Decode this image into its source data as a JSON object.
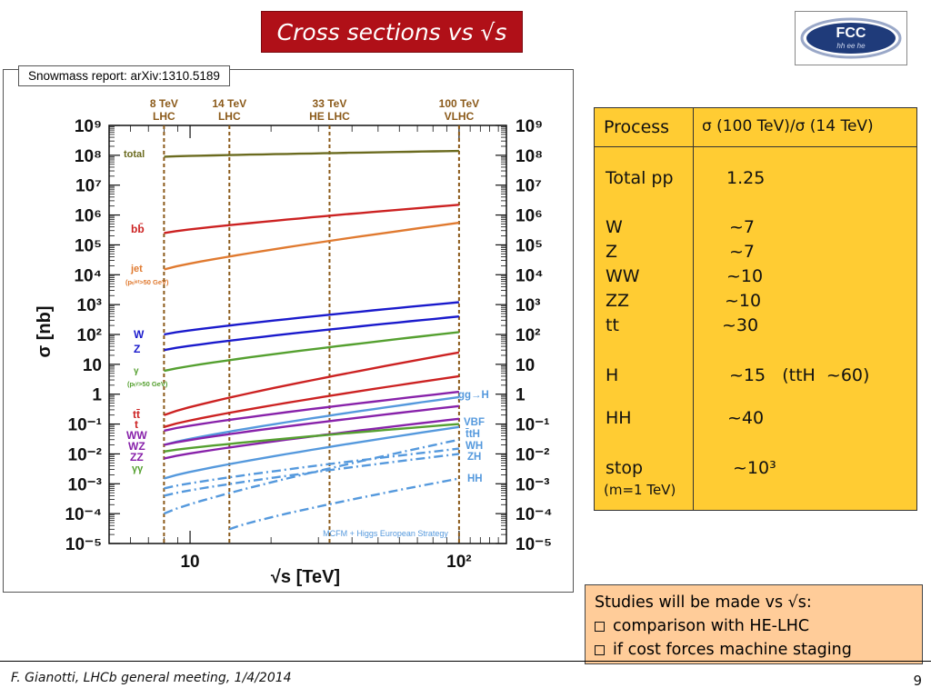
{
  "slide": {
    "title": "Cross sections vs √s",
    "logo_text_top": "FCC",
    "logo_text_bottom": "hh ee he",
    "source_label": "Snowmass report: arXiv:1310.5189",
    "footer": "F. Gianotti, LHCb general meeting, 1/4/2014",
    "page_number": "9"
  },
  "table": {
    "header_col1": "Process",
    "header_col2": "σ (100 TeV)/σ (14 TeV)",
    "rows": [
      {
        "process": "Total pp",
        "ratio": "1.25"
      },
      {
        "process": "W",
        "ratio": "~7"
      },
      {
        "process": "Z",
        "ratio": "~7"
      },
      {
        "process": "WW",
        "ratio": "~10"
      },
      {
        "process": "ZZ",
        "ratio": "~10"
      },
      {
        "process": "tt",
        "ratio": "~30"
      },
      {
        "process": "H",
        "ratio": "~15   (ttH  ~60)"
      },
      {
        "process": "HH",
        "ratio": "~40"
      },
      {
        "process": "stop",
        "ratio": "~10³"
      },
      {
        "process": "(m=1 TeV)",
        "ratio": ""
      }
    ]
  },
  "studies": {
    "heading": "Studies will be made vs √s:",
    "items": [
      "comparison with HE-LHC",
      "if cost forces machine staging"
    ]
  },
  "chart_data": {
    "type": "line",
    "xlabel": "√s [TeV]",
    "ylabel": "σ [nb]",
    "xscale": "log",
    "yscale": "log",
    "xlim": [
      5,
      150
    ],
    "ylim": [
      1e-05,
      1000000000.0
    ],
    "x_tick_labels": [
      "10",
      "10²"
    ],
    "y_tick_labels": [
      "10⁹",
      "10⁸",
      "10⁷",
      "10⁶",
      "10⁵",
      "10⁴",
      "10³",
      "10²",
      "10",
      "1",
      "10⁻¹",
      "10⁻²",
      "10⁻³",
      "10⁻⁴",
      "10⁻⁵"
    ],
    "vertical_markers": [
      {
        "x": 8,
        "label_top": "8 TeV",
        "label_bottom": "LHC"
      },
      {
        "x": 14,
        "label_top": "14 TeV",
        "label_bottom": "LHC"
      },
      {
        "x": 33,
        "label_top": "33 TeV",
        "label_bottom": "HE LHC"
      },
      {
        "x": 100,
        "label_top": "100 TeV",
        "label_bottom": "VLHC"
      }
    ],
    "annotation": "MCFM + Higgs European Strategy",
    "series": [
      {
        "name": "total",
        "color": "#6b6b1f",
        "dash": false,
        "x": [
          8,
          100
        ],
        "y": [
          90000000.0,
          140000000.0
        ]
      },
      {
        "name": "bb̄",
        "color": "#cc2222",
        "dash": false,
        "x": [
          8,
          100
        ],
        "y": [
          250000.0,
          2200000.0
        ]
      },
      {
        "name": "jet",
        "color": "#e07a30",
        "dash": false,
        "x": [
          8,
          100
        ],
        "y": [
          15000.0,
          550000.0
        ]
      },
      {
        "name": "W",
        "color": "#1a1acc",
        "dash": false,
        "x": [
          8,
          100
        ],
        "y": [
          100,
          1200
        ]
      },
      {
        "name": "Z",
        "color": "#1a1acc",
        "dash": false,
        "x": [
          8,
          100
        ],
        "y": [
          30,
          400
        ]
      },
      {
        "name": "γ",
        "color": "#55a030",
        "dash": false,
        "x": [
          8,
          100
        ],
        "y": [
          6,
          120
        ]
      },
      {
        "name": "tt̄",
        "color": "#cc2222",
        "dash": false,
        "x": [
          8,
          100
        ],
        "y": [
          0.2,
          25
        ]
      },
      {
        "name": "t",
        "color": "#cc2222",
        "dash": false,
        "x": [
          8,
          100
        ],
        "y": [
          0.08,
          4
        ]
      },
      {
        "name": "gg→H",
        "color": "#5599dd",
        "dash": false,
        "x": [
          8,
          100
        ],
        "y": [
          0.02,
          0.8
        ]
      },
      {
        "name": "WW",
        "color": "#8822aa",
        "dash": false,
        "x": [
          8,
          100
        ],
        "y": [
          0.06,
          1.2
        ]
      },
      {
        "name": "WZ",
        "color": "#8822aa",
        "dash": false,
        "x": [
          8,
          100
        ],
        "y": [
          0.02,
          0.4
        ]
      },
      {
        "name": "ZZ",
        "color": "#8822aa",
        "dash": false,
        "x": [
          8,
          100
        ],
        "y": [
          0.007,
          0.15
        ]
      },
      {
        "name": "γγ",
        "color": "#55a030",
        "dash": false,
        "x": [
          8,
          100
        ],
        "y": [
          0.012,
          0.1
        ]
      },
      {
        "name": "VBF",
        "color": "#5599dd",
        "dash": false,
        "x": [
          8,
          100
        ],
        "y": [
          0.0015,
          0.08
        ]
      },
      {
        "name": "t̄tH",
        "color": "#5599dd",
        "dash": true,
        "x": [
          8,
          100
        ],
        "y": [
          0.0001,
          0.03
        ]
      },
      {
        "name": "WH",
        "color": "#5599dd",
        "dash": true,
        "x": [
          8,
          100
        ],
        "y": [
          0.0007,
          0.015
        ]
      },
      {
        "name": "ZH",
        "color": "#5599dd",
        "dash": true,
        "x": [
          8,
          100
        ],
        "y": [
          0.0004,
          0.01
        ]
      },
      {
        "name": "HH",
        "color": "#5599dd",
        "dash": true,
        "x": [
          14,
          100
        ],
        "y": [
          3e-05,
          0.0015
        ]
      }
    ],
    "labels": [
      {
        "text": "total",
        "color": "#6b6b1f"
      },
      {
        "text": "bb̄",
        "color": "#cc2222"
      },
      {
        "text": "jet",
        "color": "#e07a30"
      },
      {
        "text": "(pₜʲᵉᵗ>50 GeV)",
        "color": "#e07a30"
      },
      {
        "text": "W",
        "color": "#1a1acc"
      },
      {
        "text": "Z",
        "color": "#1a1acc"
      },
      {
        "text": "γ",
        "color": "#55a030"
      },
      {
        "text": "(pₜᵞ>50 GeV)",
        "color": "#55a030"
      },
      {
        "text": "tt̄",
        "color": "#cc2222"
      },
      {
        "text": "t",
        "color": "#cc2222"
      },
      {
        "text": "WW",
        "color": "#8822aa"
      },
      {
        "text": "WZ",
        "color": "#8822aa"
      },
      {
        "text": "ZZ",
        "color": "#8822aa"
      },
      {
        "text": "γγ",
        "color": "#55a030"
      },
      {
        "text": "gg→H",
        "color": "#5599dd"
      },
      {
        "text": "VBF",
        "color": "#5599dd"
      },
      {
        "text": "t̄tH",
        "color": "#5599dd"
      },
      {
        "text": "WH",
        "color": "#5599dd"
      },
      {
        "text": "ZH",
        "color": "#5599dd"
      },
      {
        "text": "HH",
        "color": "#5599dd"
      }
    ]
  }
}
